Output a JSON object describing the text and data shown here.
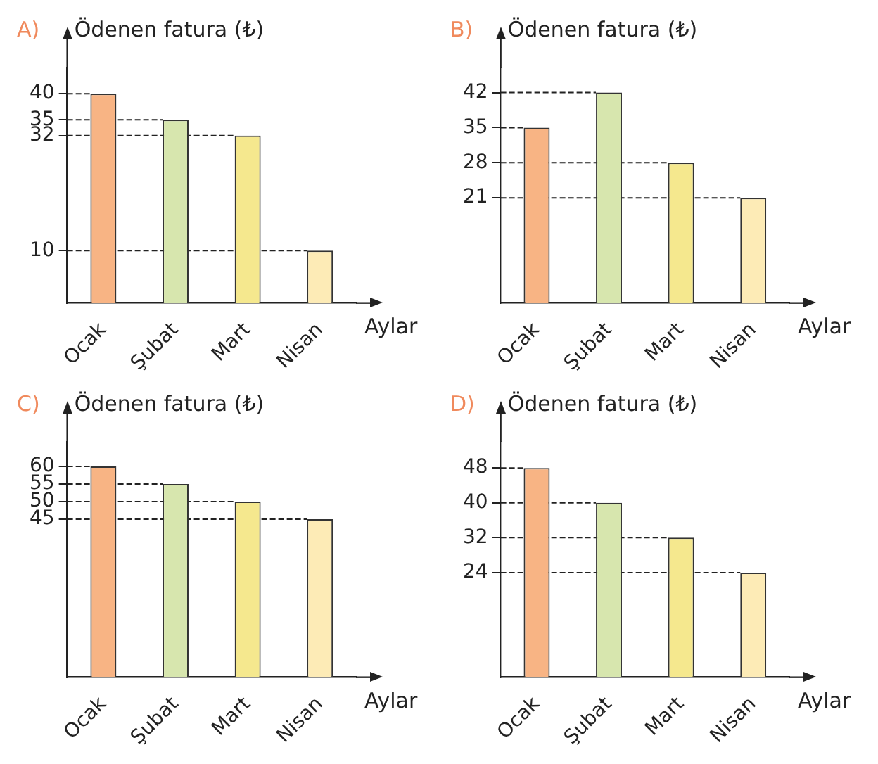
{
  "chart_data": [
    {
      "type": "bar",
      "title": "A)",
      "ylabel": "Ödenen fatura (₺)",
      "xlabel": "Aylar",
      "categories": [
        "Ocak",
        "Şubat",
        "Mart",
        "Nisan"
      ],
      "values": [
        40,
        35,
        32,
        10
      ],
      "colors": [
        "#f8b484",
        "#d7e6ae",
        "#f5e88e",
        "#fdebb6"
      ],
      "ylim": [
        0,
        45
      ],
      "yticks": [
        10,
        32,
        35,
        40
      ],
      "ref_lines": [
        {
          "axis": "y",
          "value": 40,
          "line_style": "dashed"
        },
        {
          "axis": "y",
          "value": 35,
          "line_style": "dashed"
        },
        {
          "axis": "y",
          "value": 32,
          "line_style": "dashed"
        },
        {
          "axis": "y",
          "value": 10,
          "line_style": "dashed"
        }
      ]
    },
    {
      "type": "bar",
      "title": "B)",
      "ylabel": "Ödenen fatura (₺)",
      "xlabel": "Aylar",
      "categories": [
        "Ocak",
        "Şubat",
        "Mart",
        "Nisan"
      ],
      "values": [
        35,
        42,
        28,
        21
      ],
      "colors": [
        "#f8b484",
        "#d7e6ae",
        "#f5e88e",
        "#fdebb6"
      ],
      "ylim": [
        0,
        47
      ],
      "yticks": [
        21,
        28,
        35,
        42
      ],
      "ref_lines": [
        {
          "axis": "y",
          "value": 42,
          "line_style": "dashed"
        },
        {
          "axis": "y",
          "value": 35,
          "line_style": "dashed"
        },
        {
          "axis": "y",
          "value": 28,
          "line_style": "dashed"
        },
        {
          "axis": "y",
          "value": 21,
          "line_style": "dashed"
        }
      ]
    },
    {
      "type": "bar",
      "title": "C)",
      "ylabel": "Ödenen fatura (₺)",
      "xlabel": "Aylar",
      "categories": [
        "Ocak",
        "Şubat",
        "Mart",
        "Nisan"
      ],
      "values": [
        60,
        55,
        50,
        45
      ],
      "colors": [
        "#f8b484",
        "#d7e6ae",
        "#f5e88e",
        "#fdebb6"
      ],
      "ylim": [
        0,
        67
      ],
      "yticks": [
        45,
        50,
        55,
        60
      ],
      "ref_lines": [
        {
          "axis": "y",
          "value": 60,
          "line_style": "dashed"
        },
        {
          "axis": "y",
          "value": 55,
          "line_style": "dashed"
        },
        {
          "axis": "y",
          "value": 50,
          "line_style": "dashed"
        },
        {
          "axis": "y",
          "value": 45,
          "line_style": "dashed"
        }
      ]
    },
    {
      "type": "bar",
      "title": "D)",
      "ylabel": "Ödenen fatura (₺)",
      "xlabel": "Aylar",
      "categories": [
        "Ocak",
        "Şubat",
        "Mart",
        "Nisan"
      ],
      "values": [
        48,
        40,
        32,
        24
      ],
      "colors": [
        "#f8b484",
        "#d7e6ae",
        "#f5e88e",
        "#fdebb6"
      ],
      "ylim": [
        0,
        54
      ],
      "yticks": [
        24,
        32,
        40,
        48
      ],
      "ref_lines": [
        {
          "axis": "y",
          "value": 48,
          "line_style": "dashed"
        },
        {
          "axis": "y",
          "value": 40,
          "line_style": "dashed"
        },
        {
          "axis": "y",
          "value": 32,
          "line_style": "dashed"
        },
        {
          "axis": "y",
          "value": 24,
          "line_style": "dashed"
        }
      ]
    }
  ]
}
